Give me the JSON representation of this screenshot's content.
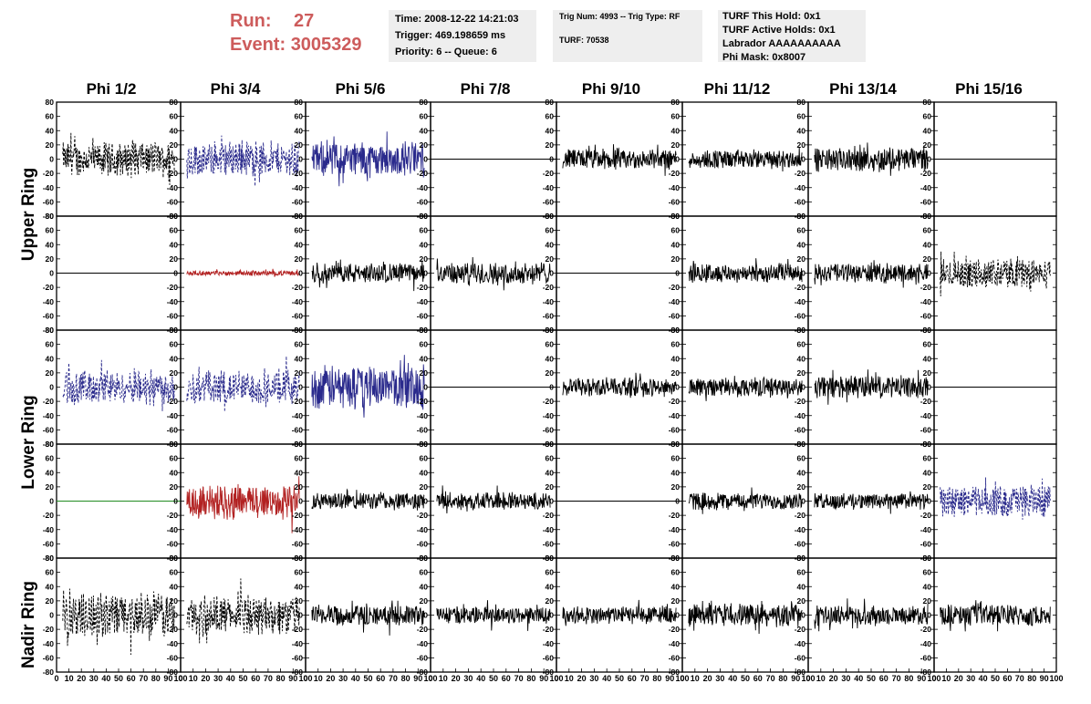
{
  "header": {
    "run_label": "Run:",
    "run_value": "27",
    "event_label": "Event:",
    "event_value": "3005329",
    "box1": [
      "Time: 2008-12-22 14:21:03",
      "Trigger: 469.198659 ms",
      "Priority: 6 -- Queue: 6"
    ],
    "box2": [
      "Trig Num: 4993 -- Trig Type: RF",
      "TURF: 70538"
    ],
    "box3": [
      "TURF This Hold: 0x1",
      "TURF Active Holds: 0x1",
      "Labrador AAAAAAAAAA",
      "Phi Mask: 0x8007"
    ]
  },
  "colors": {
    "header_red": "#cd5c5c",
    "info_bg": "#eeeeee",
    "black": "#000000",
    "blue": "#2a2a8c",
    "red": "#b22222",
    "green": "#228b22"
  },
  "columns": [
    "Phi 1/2",
    "Phi 3/4",
    "Phi 5/6",
    "Phi 7/8",
    "Phi 9/10",
    "Phi 11/12",
    "Phi 13/14",
    "Phi 15/16"
  ],
  "ring_labels": [
    "Upper Ring",
    "Lower Ring",
    "Nadir Ring"
  ],
  "chart_data": {
    "type": "line",
    "rows": 5,
    "cols": 8,
    "ylim": [
      -80,
      80
    ],
    "y_ticks": [
      80,
      60,
      40,
      20,
      0,
      -20,
      -40,
      -60,
      -80
    ],
    "y_tick_labels": [
      "80",
      "60",
      "40",
      "20",
      "0",
      "-20",
      "-40",
      "-60",
      "-80"
    ],
    "xlim": [
      0,
      100
    ],
    "x_ticks": [
      0,
      10,
      20,
      30,
      40,
      50,
      60,
      70,
      80,
      90,
      100
    ],
    "x_tick_labels": [
      "0",
      "10",
      "20",
      "30",
      "40",
      "50",
      "60",
      "70",
      "80",
      "90",
      "100"
    ],
    "n_samples": 260,
    "panels": [
      [
        "k-dash:22",
        "b-dash:22",
        "b-solid:22",
        "flat",
        "k-solid:13",
        "k-solid:12",
        "k-solid:15",
        "flat"
      ],
      [
        "flat",
        "r-small:3",
        "k-solid:12",
        "k-solid:14",
        "flat",
        "k-solid:12",
        "k-solid:12",
        "k-dash:18"
      ],
      [
        "b-dash:22",
        "b-dash:22",
        "b-solid:28",
        "flat",
        "k-solid:12",
        "k-solid:12",
        "k-solid:14",
        "flat"
      ],
      [
        "g-flat",
        "r-solid:22",
        "k-solid:11",
        "k-solid:11",
        "flat",
        "k-solid:11",
        "k-solid:10",
        "b-dash:20"
      ],
      [
        "k-dash:28",
        "k-dash:25",
        "k-solid:13",
        "k-solid:11",
        "k-solid:11",
        "k-solid:14",
        "k-solid:12",
        "k-solid:13"
      ]
    ]
  }
}
